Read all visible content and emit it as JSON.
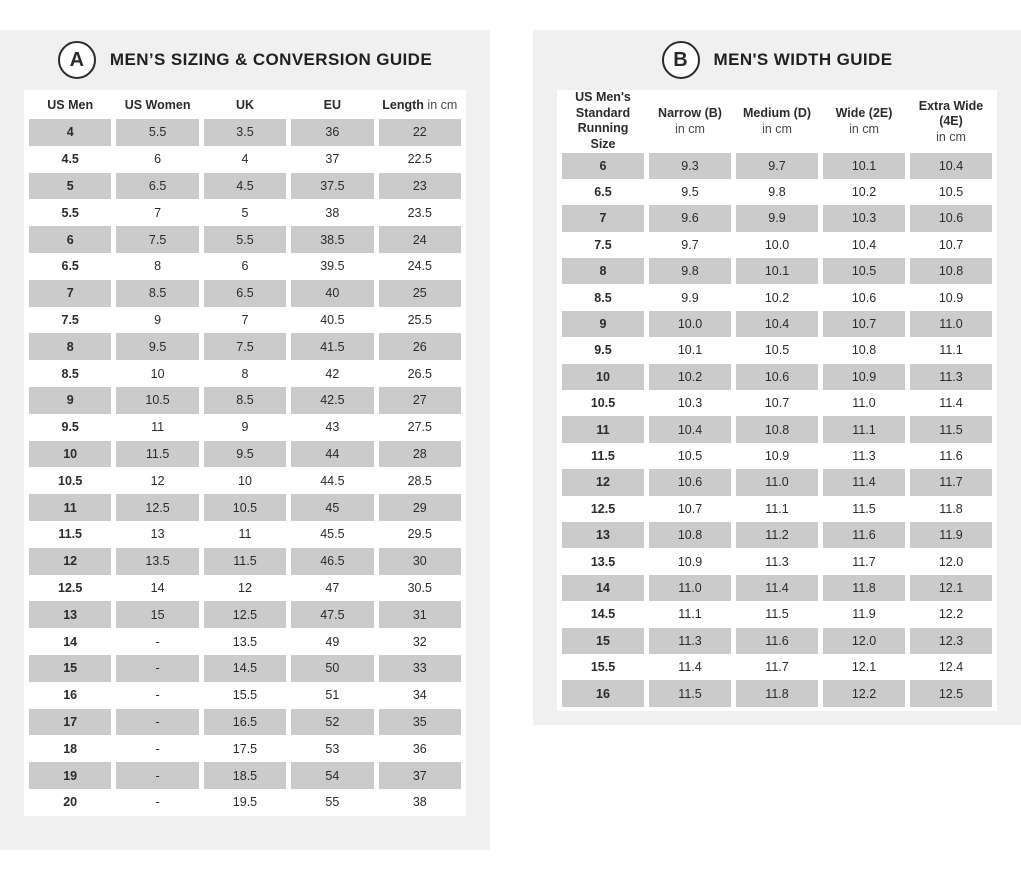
{
  "colors": {
    "page_background": "#ffffff",
    "card_background": "#f0f0f1",
    "row_shade": "#cbcbcb",
    "text": "#2b2b2b"
  },
  "chart_data": [
    {
      "type": "table",
      "badge": "A",
      "title": "MEN’S SIZING & CONVERSION GUIDE",
      "columns": [
        "US Men",
        "US Women",
        "UK",
        "EU"
      ],
      "length_header": {
        "name": "Length",
        "unit": " in cm"
      },
      "rows": [
        [
          "4",
          "5.5",
          "3.5",
          "36",
          "22"
        ],
        [
          "4.5",
          "6",
          "4",
          "37",
          "22.5"
        ],
        [
          "5",
          "6.5",
          "4.5",
          "37.5",
          "23"
        ],
        [
          "5.5",
          "7",
          "5",
          "38",
          "23.5"
        ],
        [
          "6",
          "7.5",
          "5.5",
          "38.5",
          "24"
        ],
        [
          "6.5",
          "8",
          "6",
          "39.5",
          "24.5"
        ],
        [
          "7",
          "8.5",
          "6.5",
          "40",
          "25"
        ],
        [
          "7.5",
          "9",
          "7",
          "40.5",
          "25.5"
        ],
        [
          "8",
          "9.5",
          "7.5",
          "41.5",
          "26"
        ],
        [
          "8.5",
          "10",
          "8",
          "42",
          "26.5"
        ],
        [
          "9",
          "10.5",
          "8.5",
          "42.5",
          "27"
        ],
        [
          "9.5",
          "11",
          "9",
          "43",
          "27.5"
        ],
        [
          "10",
          "11.5",
          "9.5",
          "44",
          "28"
        ],
        [
          "10.5",
          "12",
          "10",
          "44.5",
          "28.5"
        ],
        [
          "11",
          "12.5",
          "10.5",
          "45",
          "29"
        ],
        [
          "11.5",
          "13",
          "11",
          "45.5",
          "29.5"
        ],
        [
          "12",
          "13.5",
          "11.5",
          "46.5",
          "30"
        ],
        [
          "12.5",
          "14",
          "12",
          "47",
          "30.5"
        ],
        [
          "13",
          "15",
          "12.5",
          "47.5",
          "31"
        ],
        [
          "14",
          "-",
          "13.5",
          "49",
          "32"
        ],
        [
          "15",
          "-",
          "14.5",
          "50",
          "33"
        ],
        [
          "16",
          "-",
          "15.5",
          "51",
          "34"
        ],
        [
          "17",
          "-",
          "16.5",
          "52",
          "35"
        ],
        [
          "18",
          "-",
          "17.5",
          "53",
          "36"
        ],
        [
          "19",
          "-",
          "18.5",
          "54",
          "37"
        ],
        [
          "20",
          "-",
          "19.5",
          "55",
          "38"
        ]
      ]
    },
    {
      "type": "table",
      "badge": "B",
      "title": "MEN'S WIDTH GUIDE",
      "col0_header": "US Men's\nStandard\nRunning Size",
      "columns": [
        {
          "name": "Narrow (B)",
          "unit": "in cm"
        },
        {
          "name": "Medium (D)",
          "unit": "in cm"
        },
        {
          "name": "Wide (2E)",
          "unit": "in cm"
        },
        {
          "name": "Extra Wide (4E)",
          "unit": "in cm"
        }
      ],
      "rows": [
        [
          "6",
          "9.3",
          "9.7",
          "10.1",
          "10.4"
        ],
        [
          "6.5",
          "9.5",
          "9.8",
          "10.2",
          "10.5"
        ],
        [
          "7",
          "9.6",
          "9.9",
          "10.3",
          "10.6"
        ],
        [
          "7.5",
          "9.7",
          "10.0",
          "10.4",
          "10.7"
        ],
        [
          "8",
          "9.8",
          "10.1",
          "10.5",
          "10.8"
        ],
        [
          "8.5",
          "9.9",
          "10.2",
          "10.6",
          "10.9"
        ],
        [
          "9",
          "10.0",
          "10.4",
          "10.7",
          "11.0"
        ],
        [
          "9.5",
          "10.1",
          "10.5",
          "10.8",
          "11.1"
        ],
        [
          "10",
          "10.2",
          "10.6",
          "10.9",
          "11.3"
        ],
        [
          "10.5",
          "10.3",
          "10.7",
          "11.0",
          "11.4"
        ],
        [
          "11",
          "10.4",
          "10.8",
          "11.1",
          "11.5"
        ],
        [
          "11.5",
          "10.5",
          "10.9",
          "11.3",
          "11.6"
        ],
        [
          "12",
          "10.6",
          "11.0",
          "11.4",
          "11.7"
        ],
        [
          "12.5",
          "10.7",
          "11.1",
          "11.5",
          "11.8"
        ],
        [
          "13",
          "10.8",
          "11.2",
          "11.6",
          "11.9"
        ],
        [
          "13.5",
          "10.9",
          "11.3",
          "11.7",
          "12.0"
        ],
        [
          "14",
          "11.0",
          "11.4",
          "11.8",
          "12.1"
        ],
        [
          "14.5",
          "11.1",
          "11.5",
          "11.9",
          "12.2"
        ],
        [
          "15",
          "11.3",
          "11.6",
          "12.0",
          "12.3"
        ],
        [
          "15.5",
          "11.4",
          "11.7",
          "12.1",
          "12.4"
        ],
        [
          "16",
          "11.5",
          "11.8",
          "12.2",
          "12.5"
        ]
      ]
    }
  ]
}
